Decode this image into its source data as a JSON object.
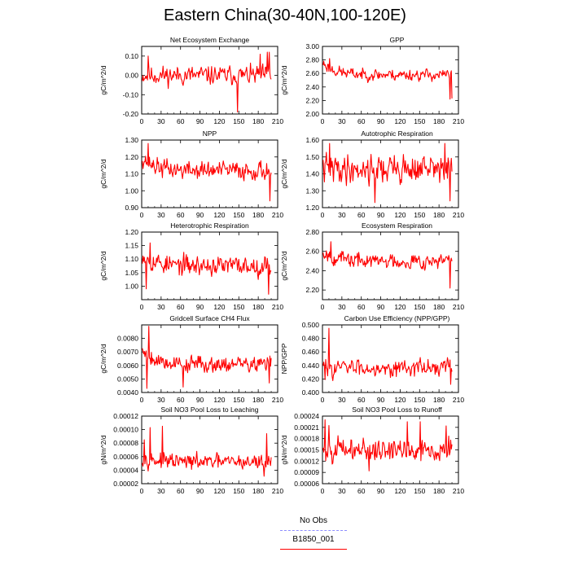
{
  "title": "Eastern China(30-40N,100-120E)",
  "legend": {
    "items": [
      {
        "label": "No Obs",
        "color": "#8c8cff",
        "dash": true
      },
      {
        "label": "B1850_001",
        "color": "#ff0000",
        "dash": false
      }
    ]
  },
  "chart_data": [
    {
      "type": "line",
      "title": "Net Ecosystem Exchange",
      "ylabel": "gC/m^2/d",
      "xlim": [
        0,
        210
      ],
      "ylim": [
        -0.2,
        0.15
      ],
      "xticks": [
        0,
        30,
        60,
        90,
        120,
        150,
        180,
        210
      ],
      "xtick_labels": [
        "0",
        "30",
        "60",
        "90",
        "120",
        "150",
        "180",
        "210"
      ],
      "yticks": [
        -0.2,
        -0.1,
        0,
        0.1
      ],
      "ytick_labels": [
        "-0.20",
        "-0.10",
        "0.00",
        "0.10"
      ],
      "series": [
        {
          "color": "#ff0000",
          "gen": {
            "n": 200,
            "mean": 0.0,
            "amp": 0.04,
            "seed": 11,
            "spikes": [
              [
                9,
                0.1
              ],
              [
                147,
                -0.19
              ],
              [
                182,
                0.11
              ],
              [
                193,
                0.12
              ],
              [
                196,
                0.12
              ]
            ]
          }
        }
      ]
    },
    {
      "type": "line",
      "title": "GPP",
      "ylabel": "gC/m^2/d",
      "xlim": [
        0,
        210
      ],
      "ylim": [
        2.0,
        3.0
      ],
      "xticks": [
        0,
        30,
        60,
        90,
        120,
        150,
        180,
        210
      ],
      "xtick_labels": [
        "0",
        "30",
        "60",
        "90",
        "120",
        "150",
        "180",
        "210"
      ],
      "yticks": [
        2.0,
        2.2,
        2.4,
        2.6,
        2.8,
        3.0
      ],
      "ytick_labels": [
        "2.00",
        "2.20",
        "2.40",
        "2.60",
        "2.80",
        "3.00"
      ],
      "series": [
        {
          "color": "#ff0000",
          "gen": {
            "n": 200,
            "mean": 2.58,
            "amp": 0.07,
            "seed": 23,
            "start": 2.75,
            "spikes": [
              [
                10,
                2.82
              ],
              [
                196,
                2.22
              ],
              [
                199,
                2.23
              ]
            ]
          }
        }
      ]
    },
    {
      "type": "line",
      "title": "NPP",
      "ylabel": "gC/m^2/d",
      "xlim": [
        0,
        210
      ],
      "ylim": [
        0.9,
        1.3
      ],
      "xticks": [
        0,
        30,
        60,
        90,
        120,
        150,
        180,
        210
      ],
      "xtick_labels": [
        "0",
        "30",
        "60",
        "90",
        "120",
        "150",
        "180",
        "210"
      ],
      "yticks": [
        0.9,
        1.0,
        1.1,
        1.2,
        1.3
      ],
      "ytick_labels": [
        "0.90",
        "1.00",
        "1.10",
        "1.20",
        "1.30"
      ],
      "series": [
        {
          "color": "#ff0000",
          "gen": {
            "n": 200,
            "mean": 1.12,
            "amp": 0.045,
            "seed": 37,
            "start": 1.2,
            "spikes": [
              [
                9,
                1.28
              ],
              [
                197,
                0.94
              ]
            ]
          }
        }
      ]
    },
    {
      "type": "line",
      "title": "Autotrophic Respiration",
      "ylabel": "gC/m^2/d",
      "xlim": [
        0,
        210
      ],
      "ylim": [
        1.2,
        1.6
      ],
      "xticks": [
        0,
        30,
        60,
        90,
        120,
        150,
        180,
        210
      ],
      "xtick_labels": [
        "0",
        "30",
        "60",
        "90",
        "120",
        "150",
        "180",
        "210"
      ],
      "yticks": [
        1.2,
        1.3,
        1.4,
        1.5,
        1.6
      ],
      "ytick_labels": [
        "1.20",
        "1.30",
        "1.40",
        "1.50",
        "1.60"
      ],
      "series": [
        {
          "color": "#ff0000",
          "gen": {
            "n": 200,
            "mean": 1.43,
            "amp": 0.07,
            "seed": 41,
            "spikes": [
              [
                10,
                1.58
              ],
              [
                80,
                1.23
              ],
              [
                188,
                1.58
              ],
              [
                196,
                1.24
              ]
            ]
          }
        }
      ]
    },
    {
      "type": "line",
      "title": "Heterotrophic Respiration",
      "ylabel": "gC/m^2/d",
      "xlim": [
        0,
        210
      ],
      "ylim": [
        0.95,
        1.2
      ],
      "xticks": [
        0,
        30,
        60,
        90,
        120,
        150,
        180,
        210
      ],
      "xtick_labels": [
        "0",
        "30",
        "60",
        "90",
        "120",
        "150",
        "180",
        "210"
      ],
      "yticks": [
        1.0,
        1.05,
        1.1,
        1.15,
        1.2
      ],
      "ytick_labels": [
        "1.00",
        "1.05",
        "1.10",
        "1.15",
        "1.20"
      ],
      "series": [
        {
          "color": "#ff0000",
          "gen": {
            "n": 200,
            "mean": 1.075,
            "amp": 0.03,
            "seed": 53,
            "start": 1.12,
            "spikes": [
              [
                12,
                1.16
              ],
              [
                6,
                0.99
              ],
              [
                195,
                0.97
              ]
            ]
          }
        }
      ]
    },
    {
      "type": "line",
      "title": "Ecosystem Respiration",
      "ylabel": "gC/m^2/d",
      "xlim": [
        0,
        210
      ],
      "ylim": [
        2.1,
        2.8
      ],
      "xticks": [
        0,
        30,
        60,
        90,
        120,
        150,
        180,
        210
      ],
      "xtick_labels": [
        "0",
        "30",
        "60",
        "90",
        "120",
        "150",
        "180",
        "210"
      ],
      "yticks": [
        2.2,
        2.4,
        2.6,
        2.8
      ],
      "ytick_labels": [
        "2.20",
        "2.40",
        "2.60",
        "2.80"
      ],
      "series": [
        {
          "color": "#ff0000",
          "gen": {
            "n": 200,
            "mean": 2.5,
            "amp": 0.065,
            "seed": 67,
            "start": 2.6,
            "spikes": [
              [
                12,
                2.7
              ],
              [
                196,
                2.22
              ]
            ]
          }
        }
      ]
    },
    {
      "type": "line",
      "title": "Gridcell Surface CH4 Flux",
      "ylabel": "gC/m^2/d",
      "xlim": [
        0,
        210
      ],
      "ylim": [
        0.004,
        0.009
      ],
      "xticks": [
        0,
        30,
        60,
        90,
        120,
        150,
        180,
        210
      ],
      "xtick_labels": [
        "0",
        "30",
        "60",
        "90",
        "120",
        "150",
        "180",
        "210"
      ],
      "yticks": [
        0.004,
        0.005,
        0.006,
        0.007,
        0.008
      ],
      "ytick_labels": [
        "0.0040",
        "0.0050",
        "0.0060",
        "0.0070",
        "0.0080"
      ],
      "series": [
        {
          "color": "#ff0000",
          "gen": {
            "n": 200,
            "mean": 0.0061,
            "amp": 0.0005,
            "seed": 79,
            "start": 0.0072,
            "spikes": [
              [
                10,
                0.0089
              ],
              [
                7,
                0.0043
              ],
              [
                63,
                0.0044
              ],
              [
                196,
                0.0047
              ]
            ]
          }
        }
      ]
    },
    {
      "type": "line",
      "title": "Carbon Use Efficiency (NPP/GPP)",
      "ylabel": "NPP/GPP",
      "xlim": [
        0,
        210
      ],
      "ylim": [
        0.4,
        0.5
      ],
      "xticks": [
        0,
        30,
        60,
        90,
        120,
        150,
        180,
        210
      ],
      "xtick_labels": [
        "0",
        "30",
        "60",
        "90",
        "120",
        "150",
        "180",
        "210"
      ],
      "yticks": [
        0.4,
        0.42,
        0.44,
        0.46,
        0.48,
        0.5
      ],
      "ytick_labels": [
        "0.400",
        "0.420",
        "0.440",
        "0.460",
        "0.480",
        "0.500"
      ],
      "series": [
        {
          "color": "#ff0000",
          "gen": {
            "n": 200,
            "mean": 0.437,
            "amp": 0.01,
            "seed": 83,
            "spikes": [
              [
                9,
                0.495
              ],
              [
                3,
                0.419
              ],
              [
                197,
                0.412
              ]
            ]
          }
        }
      ]
    },
    {
      "type": "line",
      "title": "Soil NO3 Pool Loss to Leaching",
      "ylabel": "gN/m^2/d",
      "xlim": [
        0,
        210
      ],
      "ylim": [
        2e-05,
        0.00012
      ],
      "xticks": [
        0,
        30,
        60,
        90,
        120,
        150,
        180,
        210
      ],
      "xtick_labels": [
        "0",
        "30",
        "60",
        "90",
        "120",
        "150",
        "180",
        "210"
      ],
      "yticks": [
        2e-05,
        4e-05,
        6e-05,
        8e-05,
        0.0001,
        0.00012
      ],
      "ytick_labels": [
        "0.00002",
        "0.00004",
        "0.00006",
        "0.00008",
        "0.00010",
        "0.00012"
      ],
      "series": [
        {
          "color": "#ff0000",
          "gen": {
            "n": 200,
            "mean": 5.2e-05,
            "amp": 9e-06,
            "seed": 97,
            "start": 6e-05,
            "spikes": [
              [
                12,
                0.000103
              ],
              [
                3,
                8.5e-05
              ],
              [
                31,
                0.000105
              ],
              [
                192,
                9.4e-05
              ],
              [
                188,
                3.1e-05
              ]
            ]
          }
        }
      ]
    },
    {
      "type": "line",
      "title": "Soil NO3 Pool Loss to Runoff",
      "ylabel": "gN/m^2/d",
      "xlim": [
        0,
        210
      ],
      "ylim": [
        6e-05,
        0.00024
      ],
      "xticks": [
        0,
        30,
        60,
        90,
        120,
        150,
        180,
        210
      ],
      "xtick_labels": [
        "0",
        "30",
        "60",
        "90",
        "120",
        "150",
        "180",
        "210"
      ],
      "yticks": [
        6e-05,
        9e-05,
        0.00012,
        0.00015,
        0.00018,
        0.00021,
        0.00024
      ],
      "ytick_labels": [
        "0.00006",
        "0.00009",
        "0.00012",
        "0.00015",
        "0.00018",
        "0.00021",
        "0.00024"
      ],
      "series": [
        {
          "color": "#ff0000",
          "gen": {
            "n": 200,
            "mean": 0.00015,
            "amp": 2.5e-05,
            "seed": 101,
            "spikes": [
              [
                3,
                0.00023
              ],
              [
                9,
                0.000215
              ],
              [
                71,
                9.4e-05
              ],
              [
                130,
                0.000225
              ],
              [
                150,
                0.000225
              ],
              [
                190,
                0.000214
              ]
            ]
          }
        }
      ]
    }
  ]
}
